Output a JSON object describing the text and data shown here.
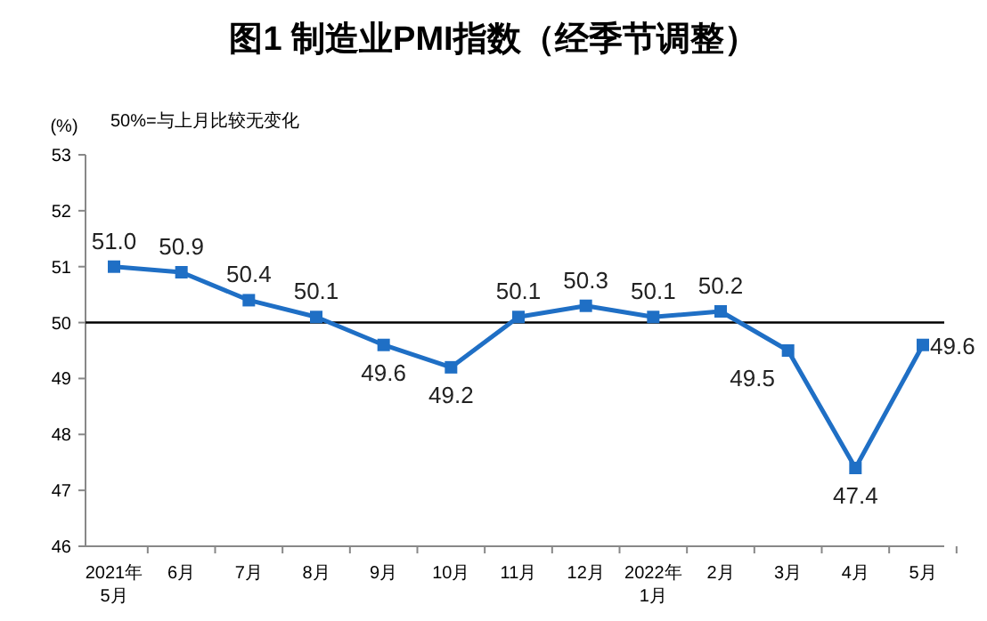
{
  "chart_data": {
    "type": "line",
    "title": "图1 制造业PMI指数（经季节调整）",
    "ylabel": "(%)",
    "annotations": [
      "50%=与上月比较无变化"
    ],
    "categories": [
      "2021年\n5月",
      "6月",
      "7月",
      "8月",
      "9月",
      "10月",
      "11月",
      "12月",
      "2022年\n1月",
      "2月",
      "3月",
      "4月",
      "5月"
    ],
    "series": [
      {
        "color": "#1f6fc5",
        "values": [
          51.0,
          50.9,
          50.4,
          50.1,
          49.6,
          49.2,
          50.1,
          50.3,
          50.1,
          50.2,
          49.5,
          47.4,
          49.6
        ],
        "value_labels": [
          "51.0",
          "50.9",
          "50.4",
          "50.1",
          "49.6",
          "49.2",
          "50.1",
          "50.3",
          "50.1",
          "50.2",
          "49.5",
          "47.4",
          "49.6"
        ]
      }
    ],
    "ylim": [
      46,
      53
    ],
    "yticks": [
      46,
      47,
      48,
      49,
      50,
      51,
      52,
      53
    ],
    "ref_lines": [
      {
        "axis": "y",
        "value": 50,
        "color": "#000000"
      }
    ],
    "marker": "square",
    "line_style": "solid",
    "grid": false
  }
}
